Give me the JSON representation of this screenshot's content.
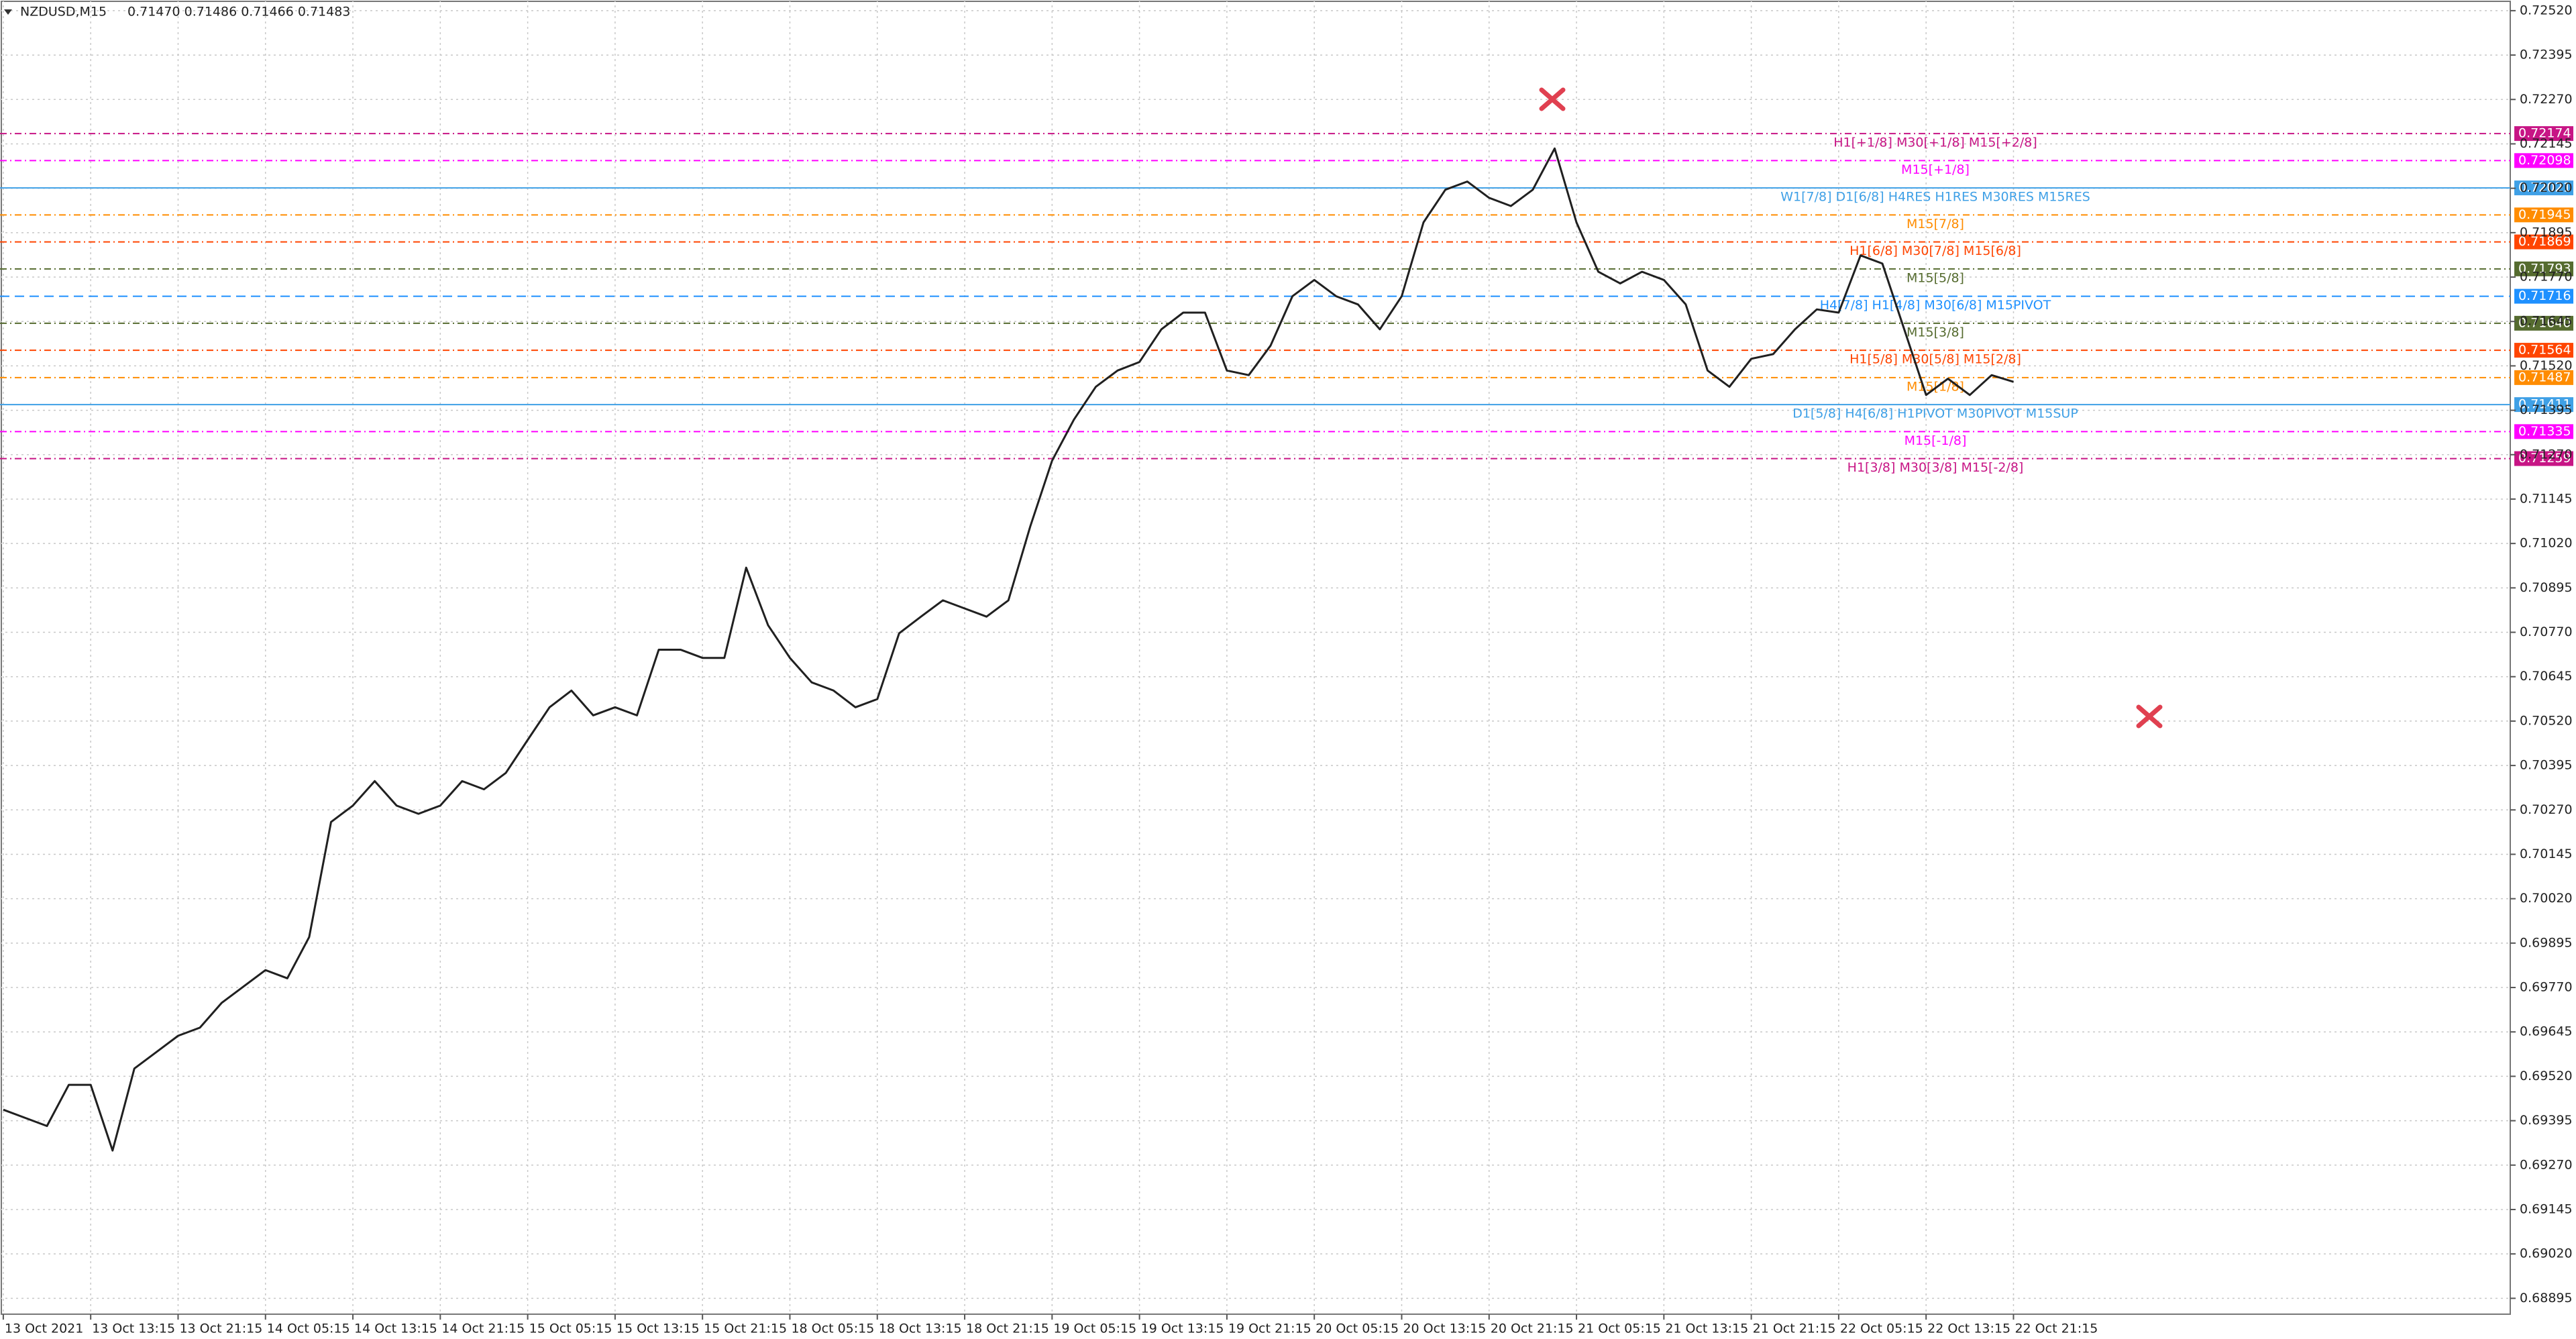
{
  "chart_data": {
    "type": "line",
    "title": "NZDUSD,M15",
    "subtitle": "0.71470 0.71486 0.71466 0.71483",
    "grid": true,
    "categories": [
      "13 Oct 2021",
      null,
      null,
      null,
      "13 Oct 13:15",
      null,
      null,
      null,
      "13 Oct 21:15",
      null,
      null,
      null,
      "14 Oct 05:15",
      null,
      null,
      null,
      "14 Oct 13:15",
      null,
      null,
      null,
      "14 Oct 21:15",
      null,
      null,
      null,
      "15 Oct 05:15",
      null,
      null,
      null,
      "15 Oct 13:15",
      null,
      null,
      null,
      "15 Oct 21:15",
      null,
      null,
      null,
      "18 Oct 05:15",
      null,
      null,
      null,
      "18 Oct 13:15",
      null,
      null,
      null,
      "18 Oct 21:15",
      null,
      null,
      null,
      "19 Oct 05:15",
      null,
      null,
      null,
      "19 Oct 13:15",
      null,
      null,
      null,
      "19 Oct 21:15",
      null,
      null,
      null,
      "20 Oct 05:15",
      null,
      null,
      null,
      "20 Oct 13:15",
      null,
      null,
      null,
      "20 Oct 21:15",
      null,
      null,
      null,
      "21 Oct 05:15",
      null,
      null,
      null,
      "21 Oct 13:15",
      null,
      null,
      null,
      "21 Oct 21:15",
      null,
      null,
      null,
      "22 Oct 05:15",
      null,
      null,
      null,
      "22 Oct 13:15",
      null,
      null,
      null,
      "22 Oct 21:15"
    ],
    "series": [
      {
        "name": "NZDUSD",
        "color": "#202020",
        "values": [
          0.69426,
          0.69403,
          0.6938,
          0.69496,
          0.69496,
          0.69311,
          0.69542,
          0.69588,
          0.69634,
          0.69657,
          0.69727,
          0.69773,
          0.69819,
          0.69796,
          0.69912,
          0.70236,
          0.70282,
          0.70351,
          0.70282,
          0.70259,
          0.70282,
          0.70351,
          0.70328,
          0.70374,
          0.70467,
          0.70559,
          0.70606,
          0.70536,
          0.70559,
          0.70536,
          0.70721,
          0.70721,
          0.70698,
          0.70698,
          0.70952,
          0.7079,
          0.70698,
          0.70629,
          0.70606,
          0.70559,
          0.70582,
          0.70767,
          0.70814,
          0.7086,
          0.70837,
          0.70814,
          0.7086,
          0.71068,
          0.71253,
          0.71369,
          0.71461,
          0.71507,
          0.71531,
          0.71623,
          0.7167,
          0.7167,
          0.71507,
          0.71494,
          0.71577,
          0.71716,
          0.71762,
          0.71716,
          0.71693,
          0.71623,
          0.71716,
          0.71924,
          0.72016,
          0.72039,
          0.71993,
          0.7197,
          0.72016,
          0.72132,
          0.71924,
          0.71785,
          0.71752,
          0.71785,
          0.71762,
          0.71693,
          0.71507,
          0.71461,
          0.7154,
          0.71553,
          0.71623,
          0.71679,
          0.7167,
          0.71831,
          0.71808,
          0.71623,
          0.71438,
          0.71484,
          0.71438,
          0.71494,
          0.71475
        ]
      }
    ],
    "ylim": [
      0.6885,
      0.7255
    ],
    "yticks": [
      {
        "value": 0.7252,
        "label": "0.72520"
      },
      0.72395,
      {
        "value": 0.7227,
        "label": "0.72270"
      },
      0.72145,
      {
        "value": 0.7202,
        "label": "0.72020"
      },
      0.71895,
      {
        "value": 0.7177,
        "label": "0.71770"
      },
      0.71645,
      {
        "value": 0.7152,
        "label": "0.71520"
      },
      0.71395,
      {
        "value": 0.7127,
        "label": "0.71270"
      },
      0.71145,
      {
        "value": 0.7102,
        "label": "0.71020"
      },
      0.70895,
      {
        "value": 0.7077,
        "label": "0.70770"
      },
      0.70645,
      {
        "value": 0.7052,
        "label": "0.70520"
      },
      0.70395,
      {
        "value": 0.7027,
        "label": "0.70270"
      },
      0.70145,
      {
        "value": 0.7002,
        "label": "0.70020"
      },
      0.69895,
      {
        "value": 0.6977,
        "label": "0.69770"
      },
      0.69645,
      {
        "value": 0.6952,
        "label": "0.69520"
      },
      0.69395,
      {
        "value": 0.6927,
        "label": "0.69270"
      },
      0.69145,
      {
        "value": 0.6902,
        "label": "0.69020"
      },
      0.68895
    ],
    "levels": [
      {
        "value": 0.72174,
        "value_label": "0.72174",
        "text": "H1[+1/8] M30[+1/8] M15[+2/8]",
        "color": "#c71585",
        "style": "dashdot"
      },
      {
        "value": 0.72098,
        "value_label": "0.72098",
        "text": "M15[+1/8]",
        "color": "#ff00ff",
        "style": "dashdot"
      },
      {
        "value": 0.72021,
        "value_label": "0.72021",
        "text": "W1[7/8] D1[6/8] H4RES H1RES M30RES M15RES",
        "color": "#3fa0e6",
        "style": "solid"
      },
      {
        "value": 0.71945,
        "value_label": "0.71945",
        "text": "M15[7/8]",
        "color": "#ff8c00",
        "style": "dashdot"
      },
      {
        "value": 0.71869,
        "value_label": "0.71869",
        "text": "H1[6/8] M30[7/8] M15[6/8]",
        "color": "#ff4500",
        "style": "dashdot"
      },
      {
        "value": 0.71793,
        "value_label": "0.71793",
        "text": "M15[5/8]",
        "color": "#556b2f",
        "style": "dashdot"
      },
      {
        "value": 0.71716,
        "value_label": "0.71716",
        "text": "H4[7/8] H1[4/8] M30[6/8] M15PIVOT",
        "color": "#1e90ff",
        "style": "dashed"
      },
      {
        "value": 0.7164,
        "value_label": "0.71640",
        "text": "M15[3/8]",
        "color": "#556b2f",
        "style": "dashdot"
      },
      {
        "value": 0.71564,
        "value_label": "0.71564",
        "text": "H1[5/8] M30[5/8] M15[2/8]",
        "color": "#ff4500",
        "style": "dashdot"
      },
      {
        "value": 0.71487,
        "value_label": "0.71487",
        "text": "M15[1/8]",
        "color": "#ff8c00",
        "style": "dashdot"
      },
      {
        "value": 0.71411,
        "value_label": "0.71411",
        "text": "D1[5/8] H4[6/8] H1PIVOT M30PIVOT M15SUP",
        "color": "#3fa0e6",
        "style": "solid"
      },
      {
        "value": 0.71335,
        "value_label": "0.71335",
        "text": "M15[-1/8]",
        "color": "#ff00ff",
        "style": "dashdot"
      },
      {
        "value": 0.71259,
        "value_label": "0.71259",
        "text": "H1[3/8] M30[3/8] M15[-2/8]",
        "color": "#c71585",
        "style": "dashdot"
      }
    ]
  }
}
